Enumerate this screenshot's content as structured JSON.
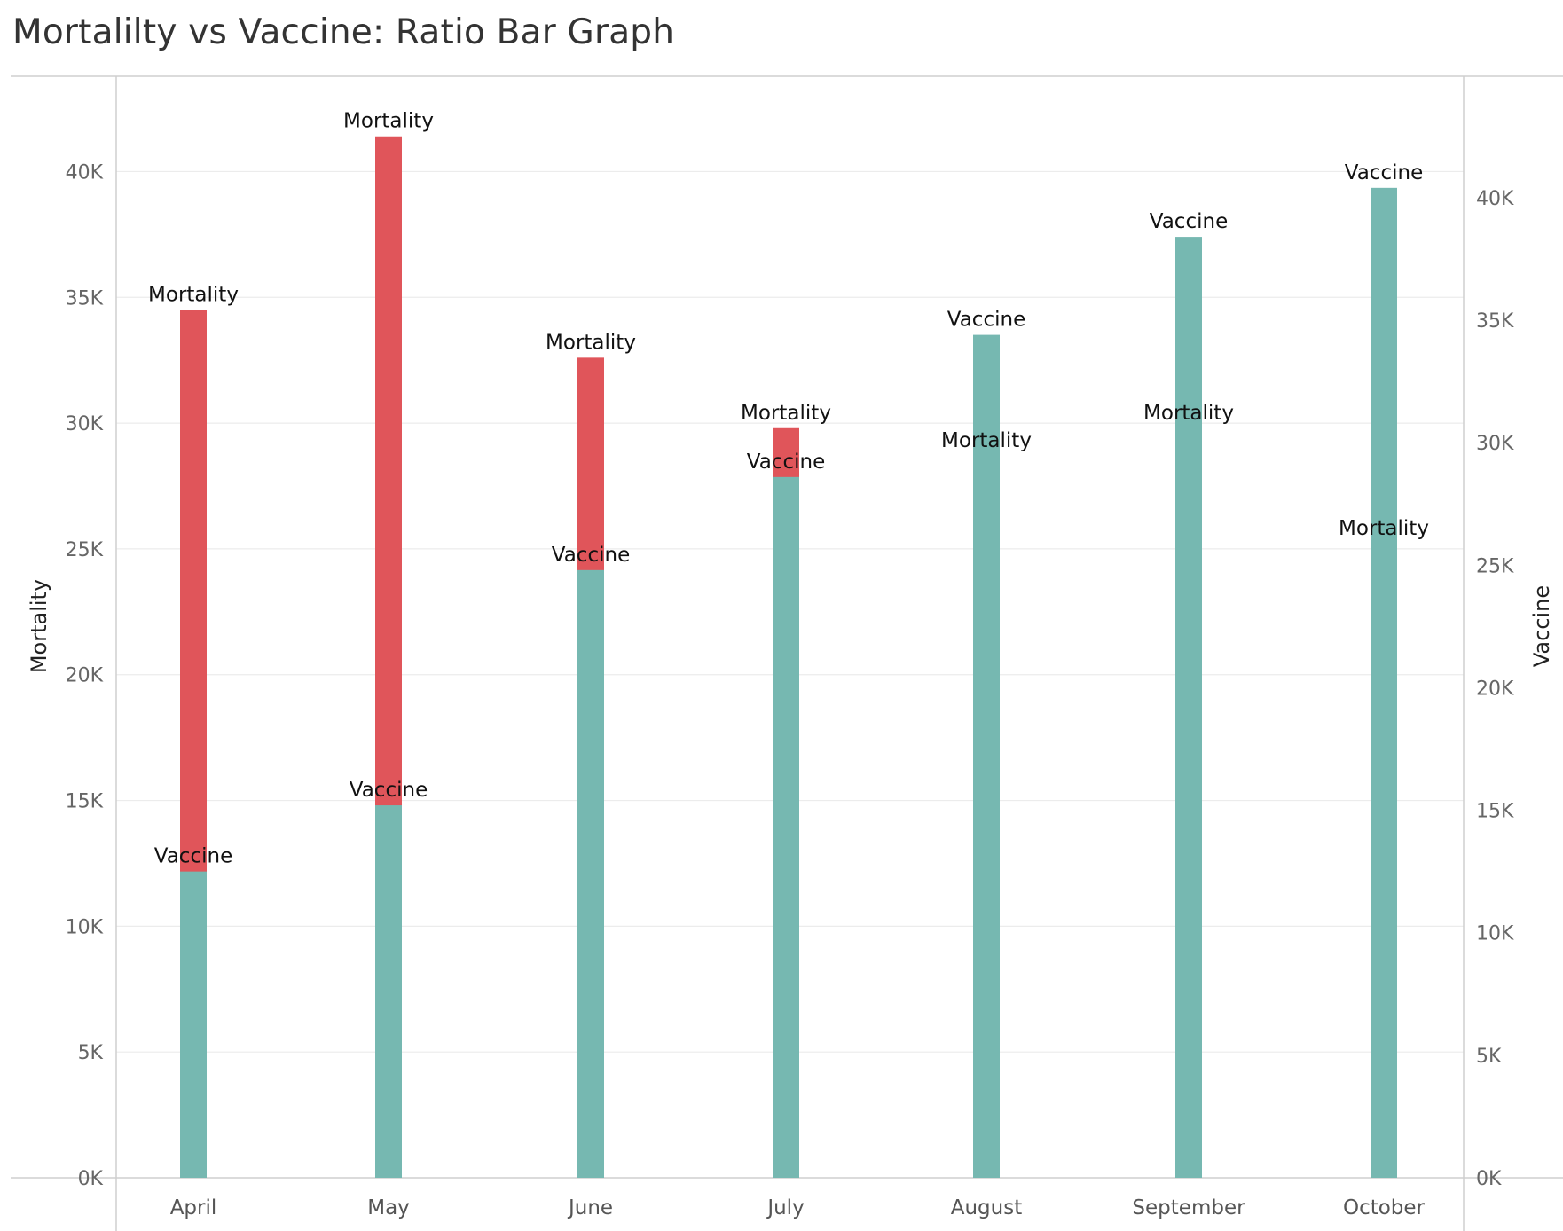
{
  "title": "Mortalilty vs Vaccine: Ratio Bar Graph",
  "colors": {
    "mortality": "#e0555a",
    "vaccine": "#76b8b1",
    "grid": "#ececec",
    "axis": "#cfcfcf"
  },
  "chart_data": {
    "type": "bar",
    "title": "Mortalilty vs Vaccine: Ratio Bar Graph",
    "categories": [
      "April",
      "May",
      "June",
      "July",
      "August",
      "September",
      "October"
    ],
    "series": [
      {
        "name": "Mortality",
        "axis": "left",
        "values": [
          34500,
          41400,
          32600,
          29800,
          28700,
          29800,
          25200
        ]
      },
      {
        "name": "Vaccine",
        "axis": "right",
        "values": [
          12500,
          15200,
          24800,
          28600,
          34400,
          38400,
          40400
        ]
      }
    ],
    "y_left": {
      "label": "Mortality",
      "ylim": [
        0,
        44000
      ],
      "ticks": [
        "0K",
        "5K",
        "10K",
        "15K",
        "20K",
        "25K",
        "30K",
        "35K",
        "40K"
      ]
    },
    "y_right": {
      "label": "Vaccine",
      "ylim": [
        0,
        43000
      ],
      "ticks": [
        "0K",
        "5K",
        "10K",
        "15K",
        "20K",
        "25K",
        "30K",
        "35K",
        "40K"
      ]
    },
    "grid": true
  }
}
